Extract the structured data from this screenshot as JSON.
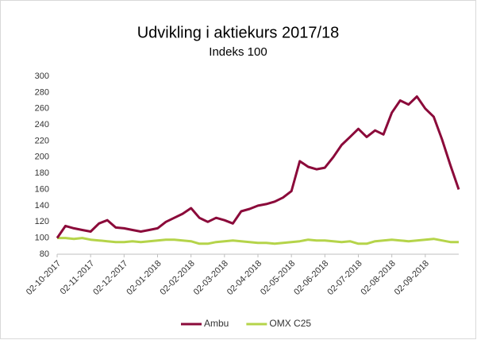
{
  "chart_data": {
    "type": "line",
    "title": "Udvikling i aktiekurs 2017/18",
    "subtitle": "Indeks 100",
    "categories": [
      "02-10-2017",
      null,
      null,
      null,
      "02-11-2017",
      null,
      null,
      null,
      "02-12-2017",
      null,
      null,
      null,
      "02-01-2018",
      null,
      null,
      null,
      "02-02-2018",
      null,
      null,
      null,
      "02-03-2018",
      null,
      null,
      null,
      "02-04-2018",
      null,
      null,
      null,
      "02-05-2018",
      null,
      null,
      null,
      "02-06-2018",
      null,
      null,
      null,
      "02-07-2018",
      null,
      null,
      null,
      "02-08-2018",
      null,
      null,
      null,
      "02-09-2018",
      null,
      null,
      null,
      null
    ],
    "series": [
      {
        "name": "Ambu",
        "color": "#8b0a3a",
        "values": [
          100,
          115,
          112,
          110,
          108,
          118,
          122,
          113,
          112,
          110,
          108,
          110,
          112,
          120,
          125,
          130,
          137,
          125,
          120,
          125,
          122,
          118,
          133,
          136,
          140,
          142,
          145,
          150,
          158,
          195,
          188,
          185,
          187,
          200,
          215,
          225,
          235,
          225,
          233,
          228,
          255,
          270,
          265,
          275,
          260,
          250,
          222,
          190,
          160
        ]
      },
      {
        "name": "OMX C25",
        "color": "#b5d44a",
        "values": [
          100,
          100,
          99,
          100,
          98,
          97,
          96,
          95,
          95,
          96,
          95,
          96,
          97,
          98,
          98,
          97,
          96,
          93,
          93,
          95,
          96,
          97,
          96,
          95,
          94,
          94,
          93,
          94,
          95,
          96,
          98,
          97,
          97,
          96,
          95,
          96,
          93,
          93,
          96,
          97,
          98,
          97,
          96,
          97,
          98,
          99,
          97,
          95,
          95
        ]
      }
    ],
    "ylim": [
      80,
      300
    ],
    "yticks": [
      80,
      100,
      120,
      140,
      160,
      180,
      200,
      220,
      240,
      260,
      280,
      300
    ],
    "legend": "bottom"
  }
}
